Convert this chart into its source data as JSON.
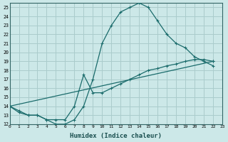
{
  "xlabel": "Humidex (Indice chaleur)",
  "xlim": [
    0,
    23
  ],
  "ylim": [
    12,
    25.5
  ],
  "xticks": [
    0,
    1,
    2,
    3,
    4,
    5,
    6,
    7,
    8,
    9,
    10,
    11,
    12,
    13,
    14,
    15,
    16,
    17,
    18,
    19,
    20,
    21,
    22,
    23
  ],
  "yticks": [
    12,
    13,
    14,
    15,
    16,
    17,
    18,
    19,
    20,
    21,
    22,
    23,
    24,
    25
  ],
  "bg_color": "#cce8e8",
  "grid_color": "#aacccc",
  "line_color": "#1a6b6b",
  "curve1_x": [
    0,
    1,
    2,
    3,
    4,
    5,
    6,
    7,
    8,
    9,
    10,
    11,
    12,
    13,
    14,
    15,
    16,
    17,
    18,
    19,
    20,
    21,
    22
  ],
  "curve1_y": [
    14,
    13.5,
    13,
    13,
    12.5,
    12,
    12,
    12.5,
    14,
    17,
    21,
    23,
    24.5,
    25,
    25.5,
    25,
    23.5,
    22,
    21,
    20.5,
    19.5,
    19,
    18.5
  ],
  "curve2_x": [
    0,
    22
  ],
  "curve2_y": [
    14,
    19
  ],
  "curve3_x": [
    0,
    1,
    2,
    3,
    4,
    5,
    6,
    7,
    8,
    9,
    10,
    11,
    12,
    13,
    14,
    15,
    16,
    17,
    18,
    19,
    20,
    21,
    22
  ],
  "curve3_y": [
    14,
    13.3,
    13,
    13,
    12.5,
    12.5,
    12.5,
    14,
    17.5,
    15.5,
    15.5,
    16,
    16.5,
    17,
    17.5,
    18,
    18.2,
    18.5,
    18.7,
    19,
    19.2,
    19.2,
    19
  ]
}
